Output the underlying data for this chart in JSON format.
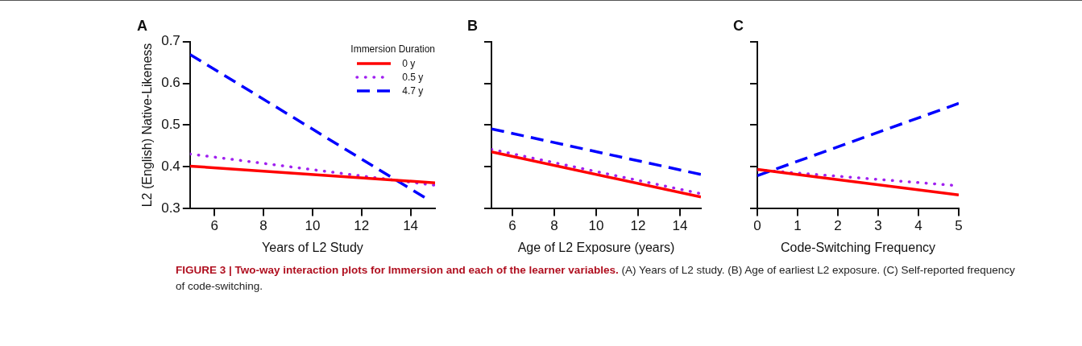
{
  "chart_data": [
    {
      "type": "line",
      "title": "A",
      "xlabel": "Years of L2 Study",
      "ylabel": "L2 (English) Native-Likeness",
      "legend_title": "Immersion Duration",
      "legend": "top right",
      "marker": "none",
      "grid": false,
      "xlim": [
        5,
        15
      ],
      "xticks": [
        6,
        8,
        10,
        12,
        14
      ],
      "ylim": [
        0.3,
        0.7
      ],
      "yticks": [
        0.3,
        0.4,
        0.5,
        0.6,
        0.7
      ],
      "series": [
        {
          "name": "0 y",
          "color": "#ff0000",
          "line_style": "solid",
          "x": [
            5,
            15
          ],
          "values": [
            0.402,
            0.362
          ]
        },
        {
          "name": "0.5 y",
          "color": "#a020f0",
          "line_style": "dotted",
          "x": [
            5,
            15
          ],
          "values": [
            0.431,
            0.356
          ]
        },
        {
          "name": "4.7 y",
          "color": "#0000ff",
          "line_style": "dashed",
          "x": [
            5,
            14.6
          ],
          "values": [
            0.669,
            0.326
          ]
        }
      ]
    },
    {
      "type": "line",
      "title": "B",
      "xlabel": "Age of L2 Exposure (years)",
      "marker": "none",
      "grid": false,
      "tick_labels": "x",
      "xlim": [
        5,
        15
      ],
      "xticks": [
        6,
        8,
        10,
        12,
        14
      ],
      "ylim": [
        0.3,
        0.7
      ],
      "yticks": [
        0.3,
        0.4,
        0.5,
        0.6,
        0.7
      ],
      "series": [
        {
          "color": "#ff0000",
          "line_style": "solid",
          "x": [
            5,
            15
          ],
          "values": [
            0.436,
            0.328
          ]
        },
        {
          "color": "#a020f0",
          "line_style": "dotted",
          "x": [
            5,
            15
          ],
          "values": [
            0.442,
            0.336
          ]
        },
        {
          "color": "#0000ff",
          "line_style": "dashed",
          "x": [
            5,
            15
          ],
          "values": [
            0.491,
            0.382
          ]
        }
      ]
    },
    {
      "type": "line",
      "title": "C",
      "xlabel": "Code-Switching Frequency",
      "marker": "none",
      "grid": false,
      "tick_labels": "x",
      "xlim": [
        0,
        5
      ],
      "xticks": [
        0,
        1,
        2,
        3,
        4,
        5
      ],
      "ylim": [
        0.3,
        0.7
      ],
      "yticks": [
        0.3,
        0.4,
        0.5,
        0.6,
        0.7
      ],
      "annotations": [
        "FIGURE 3 | Two-way interaction plots for Immersion and each of the learner variables.",
        "(A) Years of L2 study. (B) Age of earliest L2 exposure. (C) Self-reported frequency of code-switching."
      ],
      "series": [
        {
          "color": "#ff0000",
          "line_style": "solid",
          "x": [
            0,
            5
          ],
          "values": [
            0.394,
            0.333
          ]
        },
        {
          "color": "#a020f0",
          "line_style": "dotted",
          "x": [
            0,
            5
          ],
          "values": [
            0.393,
            0.355
          ]
        },
        {
          "color": "#0000ff",
          "line_style": "dashed",
          "x": [
            0,
            5
          ],
          "values": [
            0.379,
            0.552
          ]
        }
      ]
    }
  ]
}
